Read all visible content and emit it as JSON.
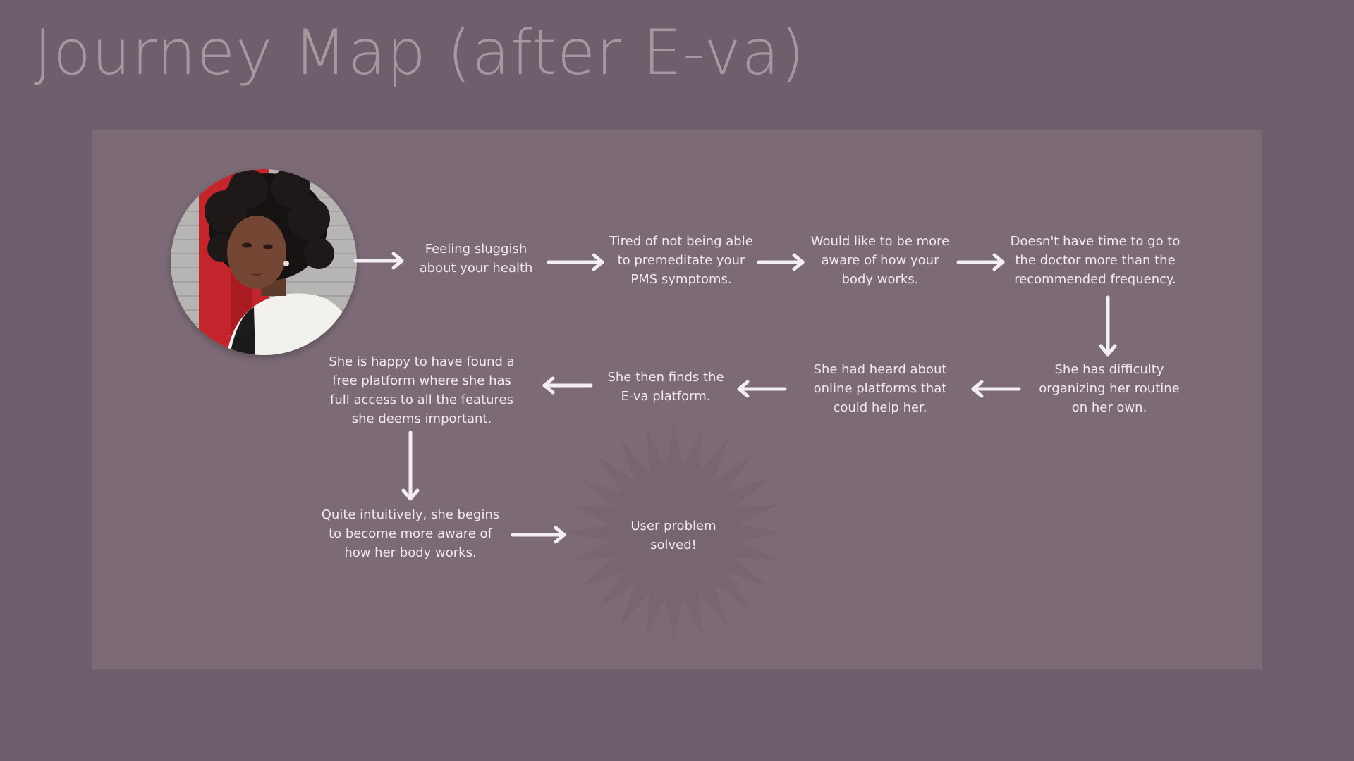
{
  "title": "Journey Map (after E-va)",
  "colors": {
    "background": "#6f5f6c",
    "panel": "#7c6b76",
    "title": "#a9969f",
    "text": "#f1e9ef",
    "arrow": "#f3eef2",
    "starburst": "#776671"
  },
  "avatar": {
    "icon": "user-portrait"
  },
  "steps": [
    {
      "text": "Feeling sluggish\nabout your health"
    },
    {
      "text": "Tired of not being able\nto premeditate your\nPMS symptoms."
    },
    {
      "text": "Would like to be more\naware of how your\nbody works."
    },
    {
      "text": "Doesn't have time to go to\nthe doctor more than the\nrecommended frequency."
    },
    {
      "text": "She has difficulty\norganizing her routine\non her own."
    },
    {
      "text": "She had heard about\nonline platforms that\ncould help her."
    },
    {
      "text": "She then finds the\nE-va platform."
    },
    {
      "text": "She is happy to have found a\nfree platform where she has\nfull access to all the features\nshe deems important."
    },
    {
      "text": "Quite intuitively, she begins\nto become more aware of\nhow her body works."
    }
  ],
  "outcome": {
    "text": "User problem\nsolved!"
  }
}
